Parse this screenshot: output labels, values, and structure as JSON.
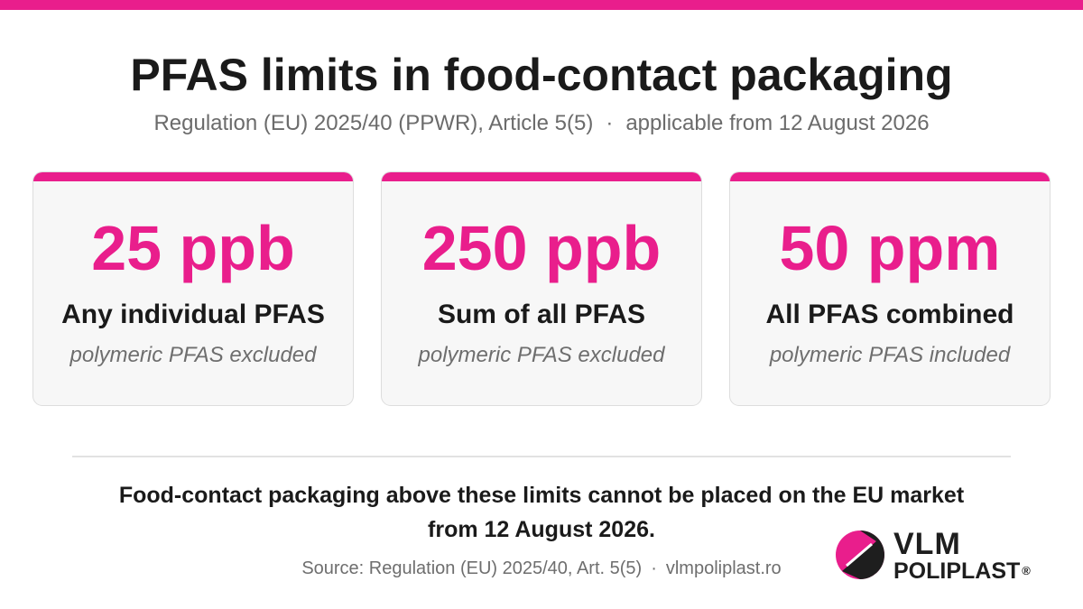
{
  "header": {
    "title": "PFAS limits in food-contact packaging",
    "subtitle_regulation": "Regulation (EU) 2025/40 (PPWR), Article 5(5)",
    "subtitle_separator": "·",
    "subtitle_applicable": "applicable from 12 August 2026"
  },
  "cards": [
    {
      "value": "25 ppb",
      "label": "Any individual PFAS",
      "note": "polymeric PFAS excluded"
    },
    {
      "value": "250 ppb",
      "label": "Sum of all PFAS",
      "note": "polymeric PFAS excluded"
    },
    {
      "value": "50 ppm",
      "label": "All PFAS combined",
      "note": "polymeric PFAS included"
    }
  ],
  "footer": {
    "statement_line1": "Food-contact packaging above these limits cannot be placed on the EU market",
    "statement_line2": "from 12 August 2026.",
    "source_text": "Source: Regulation (EU) 2025/40, Art. 5(5)",
    "source_separator": "·",
    "website": "vlmpoliplast.ro"
  },
  "logo": {
    "line1": "VLM",
    "line2": "POLIPLAST",
    "registered": "®",
    "mark_icon": "circle-triangle-logo-icon"
  },
  "colors": {
    "accent": "#e91e8c",
    "text_dark": "#1a1a1a",
    "text_muted": "#6e6e6e",
    "card_background": "#f7f7f7"
  }
}
